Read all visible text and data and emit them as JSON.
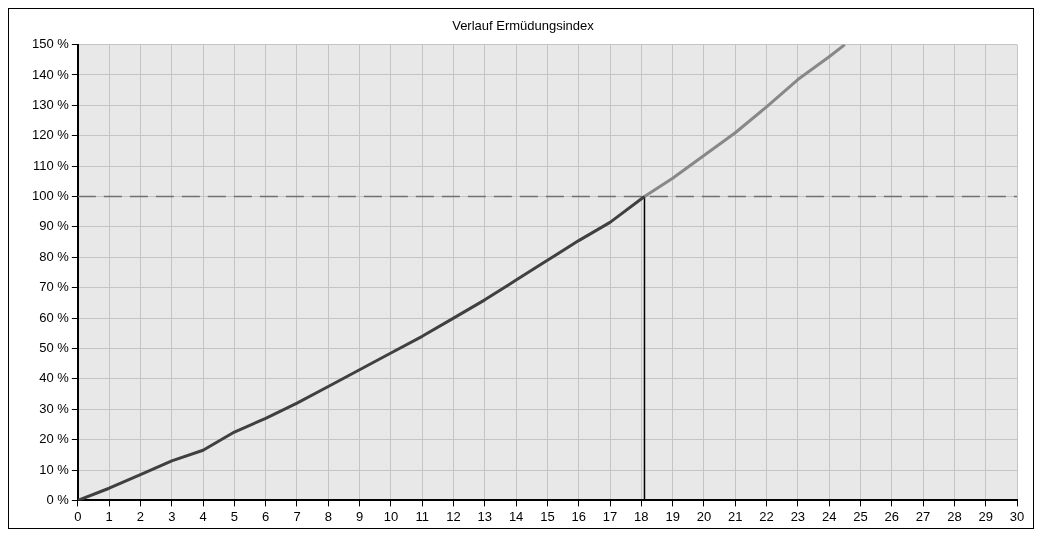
{
  "chart_data": {
    "type": "line",
    "title": "Verlauf Ermüdungsindex",
    "xlim": [
      0,
      30
    ],
    "xticks": [
      0,
      1,
      2,
      3,
      4,
      5,
      6,
      7,
      8,
      9,
      10,
      11,
      12,
      13,
      14,
      15,
      16,
      17,
      18,
      19,
      20,
      21,
      22,
      23,
      24,
      25,
      26,
      27,
      28,
      29,
      30
    ],
    "ylim": [
      0,
      150
    ],
    "yticks": [
      {
        "value": 0,
        "label": "0 %"
      },
      {
        "value": 10,
        "label": "10 %"
      },
      {
        "value": 20,
        "label": "20 %"
      },
      {
        "value": 30,
        "label": "30 %"
      },
      {
        "value": 40,
        "label": "40 %"
      },
      {
        "value": 50,
        "label": "50 %"
      },
      {
        "value": 60,
        "label": "60 %"
      },
      {
        "value": 70,
        "label": "70 %"
      },
      {
        "value": 80,
        "label": "80 %"
      },
      {
        "value": 90,
        "label": "90 %"
      },
      {
        "value": 100,
        "label": "100 %"
      },
      {
        "value": 110,
        "label": "110 %"
      },
      {
        "value": 120,
        "label": "120 %"
      },
      {
        "value": 130,
        "label": "130 %"
      },
      {
        "value": 140,
        "label": "140 %"
      },
      {
        "value": 150,
        "label": "150 %"
      }
    ],
    "grid": true,
    "legend": false,
    "marker": "none",
    "line_style": "solid",
    "series": [
      {
        "color": "#404040",
        "x": [
          0,
          1,
          2,
          3,
          4,
          5,
          6,
          7,
          8,
          9,
          10,
          11,
          12,
          13,
          14,
          15,
          16,
          17,
          18.1
        ],
        "values": [
          0,
          4,
          8.5,
          13,
          16.5,
          22.5,
          27,
          32,
          37.5,
          43,
          48.5,
          54,
          60,
          66,
          72.5,
          79,
          85.5,
          91.5,
          100
        ]
      },
      {
        "color": "#888888",
        "x": [
          18.1,
          19,
          20,
          21,
          22,
          23,
          24,
          24.5
        ],
        "values": [
          100,
          106,
          113.5,
          121,
          129.5,
          138.5,
          146,
          150
        ]
      }
    ],
    "ref_lines": [
      {
        "axis": "y",
        "value": 100,
        "color": "#707070",
        "line_style": "dashed"
      },
      {
        "axis": "x",
        "value": 18.1,
        "color": "#000000",
        "line_style": "solid"
      }
    ]
  }
}
